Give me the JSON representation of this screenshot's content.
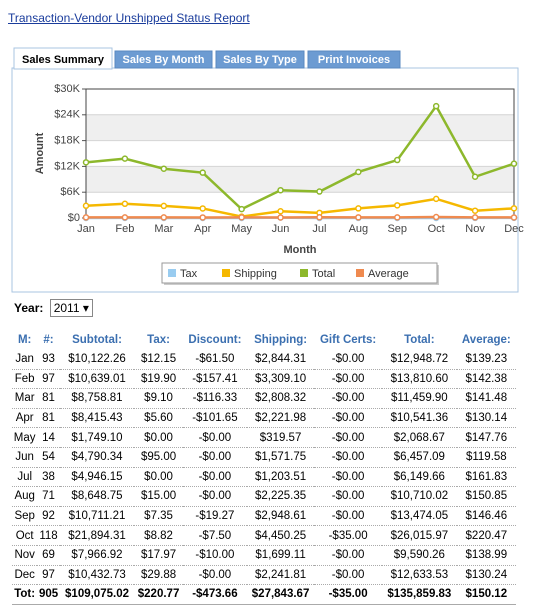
{
  "link": "Transaction-Vendor Unshipped Status Report",
  "tabs": [
    "Sales Summary",
    "Sales By Month",
    "Sales By Type",
    "Print Invoices"
  ],
  "chart_data": {
    "type": "line",
    "y_label": "Amount",
    "x_label": "Month",
    "categories": [
      "Jan",
      "Feb",
      "Mar",
      "Apr",
      "May",
      "Jun",
      "Jul",
      "Aug",
      "Sep",
      "Oct",
      "Nov",
      "Dec"
    ],
    "ylim": [
      0,
      30000
    ],
    "yticks": [
      {
        "value": 0,
        "label": "$0"
      },
      {
        "value": 6000,
        "label": "$6K"
      },
      {
        "value": 12000,
        "label": "$12K"
      },
      {
        "value": 18000,
        "label": "$18K"
      },
      {
        "value": 24000,
        "label": "$24K"
      },
      {
        "value": 30000,
        "label": "$30K"
      }
    ],
    "grid": true,
    "series": [
      {
        "name": "Tax",
        "color": "#99ccf0",
        "values": [
          12.15,
          19.9,
          9.1,
          5.6,
          0,
          95,
          0,
          15,
          7.35,
          8.82,
          17.97,
          29.88
        ]
      },
      {
        "name": "Shipping",
        "color": "#f5b800",
        "values": [
          2844.31,
          3309.1,
          2808.32,
          2221.98,
          319.57,
          1571.75,
          1203.51,
          2225.35,
          2948.61,
          4450.25,
          1699.11,
          2241.81
        ]
      },
      {
        "name": "Total",
        "color": "#8db82c",
        "values": [
          12948.72,
          13810.6,
          11459.9,
          10541.36,
          2068.67,
          6457.09,
          6149.66,
          10710.02,
          13474.05,
          26015.97,
          9590.26,
          12633.53
        ]
      },
      {
        "name": "Average",
        "color": "#ef8a4f",
        "values": [
          139.23,
          142.38,
          141.48,
          130.14,
          147.76,
          119.58,
          161.83,
          150.85,
          146.46,
          220.47,
          138.99,
          130.24
        ]
      }
    ]
  },
  "year_label": "Year:",
  "year": "2011",
  "table": {
    "columns": [
      "M:",
      "#:",
      "Subtotal:",
      "Tax:",
      "Discount:",
      "Shipping:",
      "Gift Certs:",
      "Total:",
      "Average:"
    ],
    "rows": [
      [
        "Jan",
        "93",
        "$10,122.26",
        "$12.15",
        "-$61.50",
        "$2,844.31",
        "-$0.00",
        "$12,948.72",
        "$139.23"
      ],
      [
        "Feb",
        "97",
        "$10,639.01",
        "$19.90",
        "-$157.41",
        "$3,309.10",
        "-$0.00",
        "$13,810.60",
        "$142.38"
      ],
      [
        "Mar",
        "81",
        "$8,758.81",
        "$9.10",
        "-$116.33",
        "$2,808.32",
        "-$0.00",
        "$11,459.90",
        "$141.48"
      ],
      [
        "Apr",
        "81",
        "$8,415.43",
        "$5.60",
        "-$101.65",
        "$2,221.98",
        "-$0.00",
        "$10,541.36",
        "$130.14"
      ],
      [
        "May",
        "14",
        "$1,749.10",
        "$0.00",
        "-$0.00",
        "$319.57",
        "-$0.00",
        "$2,068.67",
        "$147.76"
      ],
      [
        "Jun",
        "54",
        "$4,790.34",
        "$95.00",
        "-$0.00",
        "$1,571.75",
        "-$0.00",
        "$6,457.09",
        "$119.58"
      ],
      [
        "Jul",
        "38",
        "$4,946.15",
        "$0.00",
        "-$0.00",
        "$1,203.51",
        "-$0.00",
        "$6,149.66",
        "$161.83"
      ],
      [
        "Aug",
        "71",
        "$8,648.75",
        "$15.00",
        "-$0.00",
        "$2,225.35",
        "-$0.00",
        "$10,710.02",
        "$150.85"
      ],
      [
        "Sep",
        "92",
        "$10,711.21",
        "$7.35",
        "-$19.27",
        "$2,948.61",
        "-$0.00",
        "$13,474.05",
        "$146.46"
      ],
      [
        "Oct",
        "118",
        "$21,894.31",
        "$8.82",
        "-$7.50",
        "$4,450.25",
        "-$35.00",
        "$26,015.97",
        "$220.47"
      ],
      [
        "Nov",
        "69",
        "$7,966.92",
        "$17.97",
        "-$10.00",
        "$1,699.11",
        "-$0.00",
        "$9,590.26",
        "$138.99"
      ],
      [
        "Dec",
        "97",
        "$10,432.73",
        "$29.88",
        "-$0.00",
        "$2,241.81",
        "-$0.00",
        "$12,633.53",
        "$130.24"
      ]
    ],
    "total": [
      "Tot:",
      "905",
      "$109,075.02",
      "$220.77",
      "-$473.66",
      "$27,843.67",
      "-$35.00",
      "$135,859.83",
      "$150.12"
    ]
  }
}
